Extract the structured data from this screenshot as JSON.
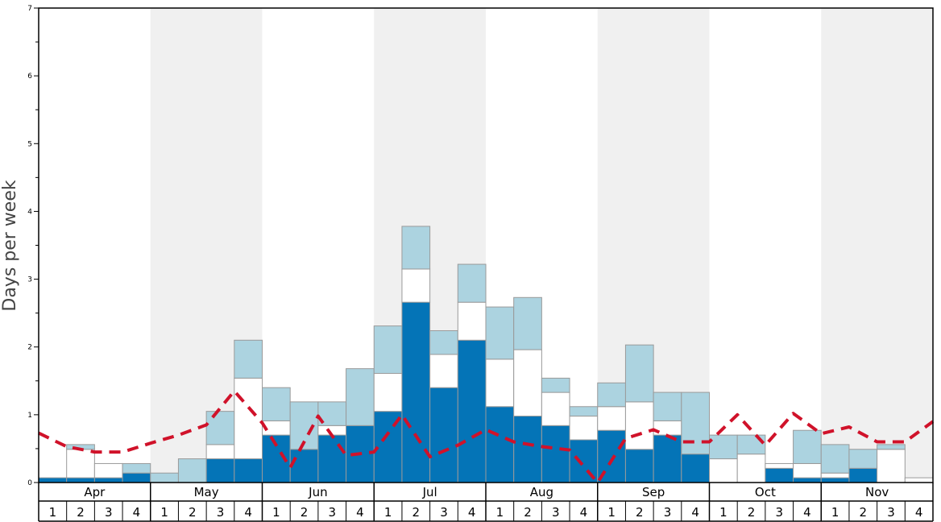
{
  "chart_data": {
    "type": "bar",
    "title": "",
    "xlabel": "",
    "ylabel": "Days per week",
    "ylim": [
      0,
      7
    ],
    "yticks": [
      "0",
      "1",
      "2",
      "3",
      "4",
      "5",
      "6",
      "7"
    ],
    "months": [
      "Apr",
      "May",
      "Jun",
      "Jul",
      "Aug",
      "Sep",
      "Oct",
      "Nov"
    ],
    "week_labels": [
      "1",
      "2",
      "3",
      "4"
    ],
    "series": [
      {
        "name": "dark",
        "values": [
          0.07,
          0.07,
          0.07,
          0.14,
          0,
          0,
          0.35,
          0.35,
          0.7,
          0.49,
          0.7,
          0.84,
          1.05,
          2.66,
          1.4,
          2.1,
          1.12,
          0.98,
          0.84,
          0.63,
          0.77,
          0.49,
          0.7,
          0.42,
          0,
          0,
          0.21,
          0.07,
          0.07,
          0.21,
          0,
          0
        ]
      },
      {
        "name": "white",
        "values": [
          0,
          0.42,
          0.21,
          0,
          0,
          0,
          0.21,
          1.19,
          0.21,
          0,
          0.14,
          0,
          0.56,
          0.49,
          0.49,
          0.56,
          0.7,
          0.98,
          0.49,
          0.35,
          0.35,
          0.7,
          0.21,
          0,
          0.35,
          0.42,
          0.07,
          0.21,
          0.07,
          0,
          0.49,
          0.07
        ]
      },
      {
        "name": "light",
        "values": [
          0,
          0.07,
          0,
          0.14,
          0.14,
          0.35,
          0.49,
          0.56,
          0.49,
          0.7,
          0.35,
          0.84,
          0.7,
          0.63,
          0.35,
          0.56,
          0.77,
          0.77,
          0.21,
          0.14,
          0.35,
          0.84,
          0.42,
          0.91,
          0.35,
          0.28,
          0,
          0.49,
          0.42,
          0.28,
          0.07,
          0
        ]
      }
    ],
    "line": {
      "name": "average",
      "values": [
        0.73,
        0.53,
        0.45,
        0.45,
        0.58,
        0.7,
        0.85,
        1.35,
        0.88,
        0.22,
        0.98,
        0.4,
        0.45,
        1.0,
        0.38,
        0.55,
        0.78,
        0.6,
        0.53,
        0.48,
        0.0,
        0.65,
        0.78,
        0.6,
        0.6,
        1.0,
        0.55,
        1.02,
        0.72,
        0.82,
        0.6,
        0.6,
        0.9
      ]
    },
    "colors": {
      "dark": "#0474b7",
      "white": "#ffffff",
      "light": "#acd3e0",
      "line": "#d0122a",
      "band": "#f0f0f0",
      "bar_stroke": "#9a9a9a"
    }
  }
}
